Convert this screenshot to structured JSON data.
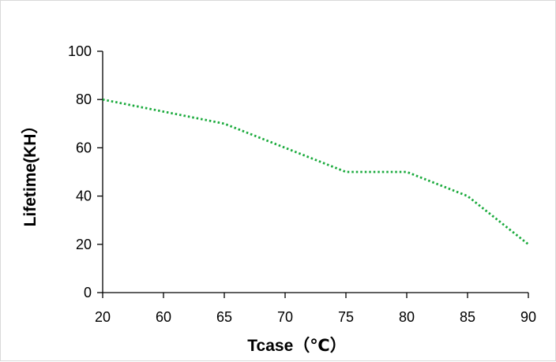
{
  "chart_data": {
    "type": "line",
    "title": "",
    "xlabel": "Tcase（℃）",
    "ylabel": "Lifetime(KH）",
    "categories": [
      "20",
      "60",
      "65",
      "70",
      "75",
      "80",
      "85",
      "90"
    ],
    "ylim": [
      0,
      100
    ],
    "yticks": [
      0,
      20,
      40,
      60,
      80,
      100
    ],
    "grid": false,
    "legend": "none",
    "series": [
      {
        "values": [
          80,
          75,
          70,
          60,
          50,
          50,
          40,
          20
        ],
        "color": "#1aaa3c",
        "line_style": "dotted"
      }
    ]
  }
}
